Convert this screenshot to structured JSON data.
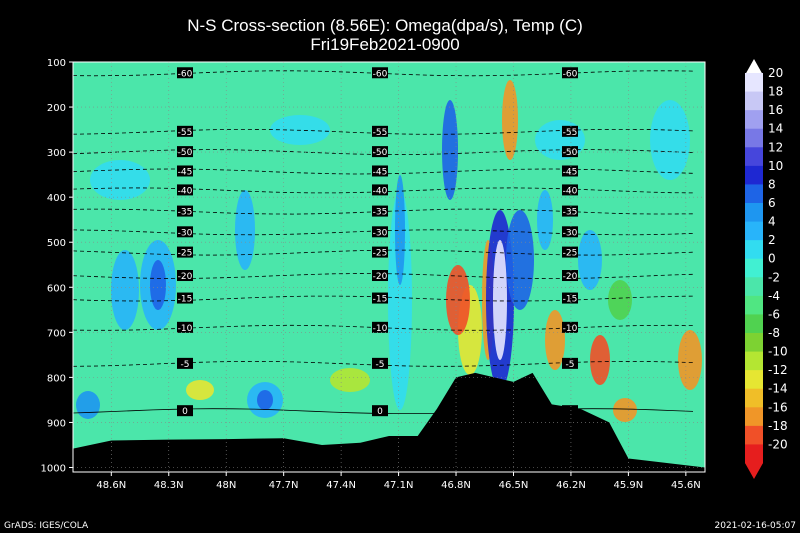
{
  "chart_data": {
    "type": "heatmap",
    "title": "N-S Cross-section (8.56E): Omega(dpa/s), Temp (C)",
    "subtitle": "Fri19Feb2021-0900",
    "x_ticks": [
      "48.6N",
      "48.3N",
      "48N",
      "47.7N",
      "47.4N",
      "47.1N",
      "46.8N",
      "46.5N",
      "46.2N",
      "45.9N",
      "45.6N"
    ],
    "x_tick_values": [
      48.6,
      48.3,
      48.0,
      47.7,
      47.4,
      47.1,
      46.8,
      46.5,
      46.2,
      45.9,
      45.6
    ],
    "xlim": [
      48.8,
      45.5
    ],
    "y_ticks": [
      "100",
      "200",
      "300",
      "400",
      "500",
      "600",
      "700",
      "800",
      "900",
      "1000"
    ],
    "y_tick_values": [
      100,
      200,
      300,
      400,
      500,
      600,
      700,
      800,
      900,
      1000
    ],
    "ylim": [
      100,
      1010
    ],
    "colorbar": {
      "labels": [
        "20",
        "18",
        "16",
        "14",
        "12",
        "10",
        "8",
        "6",
        "4",
        "2",
        "0",
        "-2",
        "-4",
        "-6",
        "-8",
        "-10",
        "-12",
        "-14",
        "-16",
        "-18",
        "-20"
      ],
      "colors": [
        "#e6e6ff",
        "#c8c8f5",
        "#a0a0f0",
        "#7878e6",
        "#4646dc",
        "#1e28d2",
        "#1e64e6",
        "#1e96f0",
        "#28b4fa",
        "#32dcf0",
        "#41f0d2",
        "#4be6aa",
        "#50e682",
        "#50d250",
        "#7dd232",
        "#b4e632",
        "#e6e632",
        "#f0be28",
        "#f09628",
        "#f05028",
        "#e61e1e"
      ]
    },
    "temperature_contours": [
      {
        "level": -60,
        "label": "-60",
        "pressure": 125
      },
      {
        "level": -55,
        "label": "-55",
        "pressure": 255
      },
      {
        "level": -50,
        "label": "-50",
        "pressure": 300
      },
      {
        "level": -45,
        "label": "-45",
        "pressure": 343
      },
      {
        "level": -40,
        "label": "-40",
        "pressure": 385
      },
      {
        "level": -35,
        "label": "-35",
        "pressure": 432
      },
      {
        "level": -30,
        "label": "-30",
        "pressure": 478
      },
      {
        "level": -25,
        "label": "-25",
        "pressure": 523
      },
      {
        "level": -20,
        "label": "-20",
        "pressure": 575
      },
      {
        "level": -15,
        "label": "-15",
        "pressure": 625
      },
      {
        "level": -10,
        "label": "-10",
        "pressure": 690
      },
      {
        "level": -5,
        "label": "-5",
        "pressure": 770
      },
      {
        "level": 0,
        "label": "0",
        "pressure": 875
      }
    ],
    "terrain_surface_pressure": [
      {
        "lat": 48.8,
        "p": 958
      },
      {
        "lat": 48.6,
        "p": 940
      },
      {
        "lat": 48.3,
        "p": 938
      },
      {
        "lat": 48.0,
        "p": 937
      },
      {
        "lat": 47.7,
        "p": 935
      },
      {
        "lat": 47.5,
        "p": 950
      },
      {
        "lat": 47.3,
        "p": 945
      },
      {
        "lat": 47.15,
        "p": 930
      },
      {
        "lat": 47.0,
        "p": 930
      },
      {
        "lat": 46.9,
        "p": 870
      },
      {
        "lat": 46.8,
        "p": 800
      },
      {
        "lat": 46.7,
        "p": 790
      },
      {
        "lat": 46.6,
        "p": 800
      },
      {
        "lat": 46.5,
        "p": 810
      },
      {
        "lat": 46.4,
        "p": 790
      },
      {
        "lat": 46.3,
        "p": 860
      },
      {
        "lat": 46.15,
        "p": 870
      },
      {
        "lat": 46.0,
        "p": 900
      },
      {
        "lat": 45.9,
        "p": 980
      },
      {
        "lat": 45.5,
        "p": 1000
      }
    ],
    "footer_left": "GrADS: IGES/COLA",
    "footer_right": "2021-02-16-05:07"
  }
}
